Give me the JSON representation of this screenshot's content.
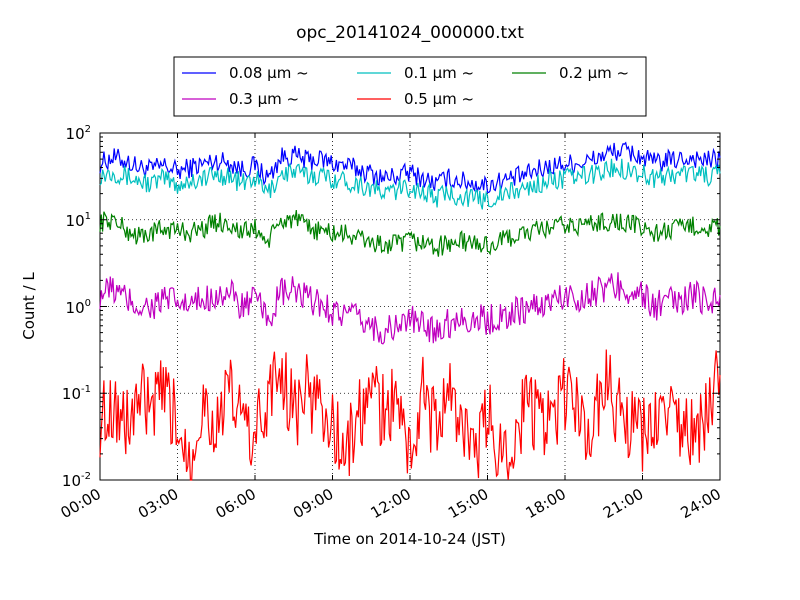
{
  "chart_data": {
    "type": "line",
    "title": "opc_20141024_000000.txt",
    "xlabel": "Time on 2014-10-24 (JST)",
    "ylabel": "Count / L",
    "yscale": "log",
    "ylim": [
      0.01,
      100
    ],
    "xlim": [
      0,
      24
    ],
    "grid": true,
    "legend_position": "top",
    "x_ticks": [
      "00:00",
      "03:00",
      "06:00",
      "09:00",
      "12:00",
      "15:00",
      "18:00",
      "21:00",
      "24:00"
    ],
    "y_ticks": [
      {
        "base": "10",
        "exp": "-2"
      },
      {
        "base": "10",
        "exp": "-1"
      },
      {
        "base": "10",
        "exp": "0"
      },
      {
        "base": "10",
        "exp": "1"
      },
      {
        "base": "10",
        "exp": "2"
      }
    ],
    "hours": [
      0,
      0.5,
      1,
      1.5,
      2,
      2.5,
      3,
      3.5,
      4,
      4.5,
      5,
      5.5,
      6,
      6.5,
      7,
      7.5,
      8,
      8.5,
      9,
      9.5,
      10,
      10.5,
      11,
      11.5,
      12,
      12.5,
      13,
      13.5,
      14,
      14.5,
      15,
      15.5,
      16,
      16.5,
      17,
      17.5,
      18,
      18.5,
      19,
      19.5,
      20,
      20.5,
      21,
      21.5,
      22,
      22.5,
      23,
      23.5,
      24
    ],
    "series": [
      {
        "name": "0.08 μm ~",
        "color": "#0000ff",
        "dashed": false,
        "values": [
          45,
          52,
          48,
          40,
          38,
          42,
          36,
          40,
          44,
          48,
          46,
          38,
          42,
          30,
          52,
          55,
          48,
          50,
          45,
          42,
          38,
          34,
          30,
          32,
          35,
          30,
          26,
          30,
          28,
          26,
          25,
          28,
          30,
          33,
          38,
          42,
          44,
          45,
          48,
          56,
          62,
          60,
          52,
          45,
          48,
          50,
          52,
          48,
          50
        ]
      },
      {
        "name": "0.1 μm ~",
        "color": "#00bfbf",
        "dashed": false,
        "values": [
          33,
          36,
          32,
          28,
          26,
          30,
          25,
          28,
          30,
          33,
          32,
          26,
          30,
          20,
          34,
          36,
          32,
          33,
          30,
          28,
          26,
          23,
          20,
          22,
          24,
          21,
          18,
          20,
          19,
          17,
          17,
          19,
          21,
          23,
          26,
          29,
          30,
          31,
          33,
          37,
          40,
          38,
          34,
          30,
          32,
          34,
          35,
          32,
          33
        ]
      },
      {
        "name": "0.2 μm ~",
        "color": "#008000",
        "dashed": false,
        "values": [
          9.5,
          10,
          7.5,
          6.5,
          7,
          8,
          7.5,
          7.2,
          8,
          9.5,
          9,
          7,
          8,
          5.5,
          9.5,
          10.5,
          8,
          7.5,
          7,
          6.8,
          6.2,
          5.5,
          5,
          5.2,
          5.6,
          5.5,
          4.8,
          5.3,
          5.6,
          5.3,
          5,
          5.6,
          6.5,
          7,
          7.5,
          8.2,
          8.5,
          8.5,
          9,
          9.5,
          9.5,
          9,
          8,
          7,
          7.5,
          8,
          8.5,
          8,
          8.2
        ]
      },
      {
        "name": "0.3 μm ~",
        "color": "#bf00bf",
        "dashed": false,
        "values": [
          1.4,
          1.6,
          1.2,
          1,
          1,
          1.2,
          1.1,
          1,
          1.2,
          1.4,
          1.4,
          1,
          1.2,
          0.7,
          1.4,
          1.5,
          1.2,
          1.1,
          0.9,
          0.8,
          0.7,
          0.6,
          0.5,
          0.6,
          0.7,
          0.6,
          0.55,
          0.65,
          0.75,
          0.7,
          0.7,
          0.75,
          0.85,
          0.95,
          1,
          1.2,
          1.3,
          1.3,
          1.4,
          1.6,
          1.7,
          1.6,
          1.3,
          1,
          1.1,
          1.2,
          1.3,
          1.2,
          1.3
        ]
      },
      {
        "name": "0.5 μm ~",
        "color": "#ff0000",
        "dashed": false,
        "values": [
          0.05,
          0.08,
          0.04,
          0.09,
          0.06,
          0.1,
          0.04,
          0.02,
          0.08,
          0.04,
          0.1,
          0.05,
          0.03,
          0.09,
          0.2,
          0.06,
          0.1,
          0.08,
          0.04,
          0.02,
          0.05,
          0.1,
          0.06,
          0.08,
          0.02,
          0.1,
          0.04,
          0.1,
          0.05,
          0.015,
          0.06,
          0.02,
          0.03,
          0.08,
          0.05,
          0.04,
          0.1,
          0.06,
          0.03,
          0.18,
          0.06,
          0.04,
          0.03,
          0.05,
          0.06,
          0.04,
          0.03,
          0.06,
          0.15
        ]
      }
    ]
  }
}
